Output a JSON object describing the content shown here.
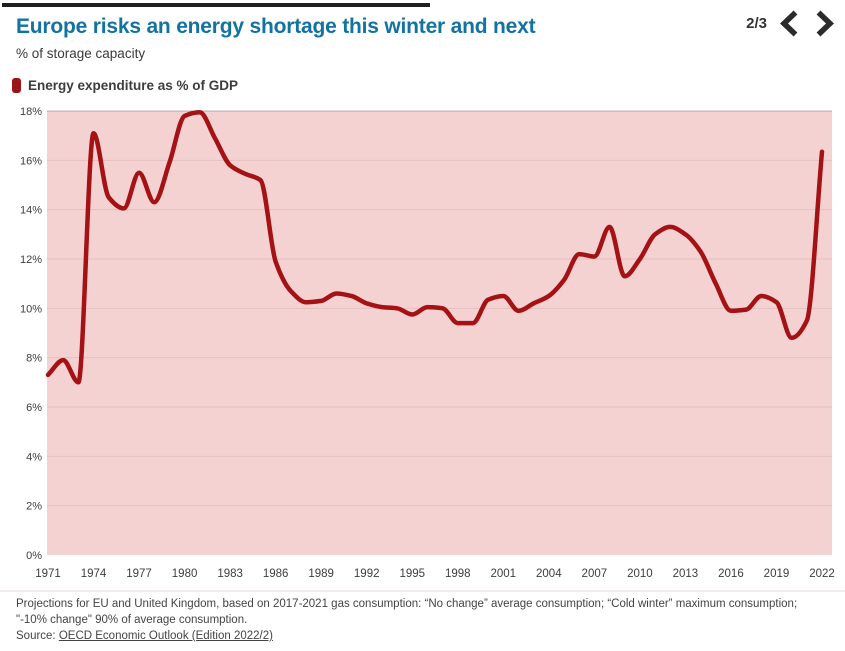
{
  "page": {
    "indicator": "2/3"
  },
  "header": {
    "title": "Europe risks an energy shortage this winter and next",
    "subtitle": "% of storage capacity"
  },
  "legend": {
    "label": "Energy expenditure as % of GDP",
    "swatch_color": "#9b1417"
  },
  "chart_data": {
    "type": "line",
    "title": "Europe risks an energy shortage this winter and next",
    "subtitle": "% of storage capacity",
    "xlabel": "",
    "ylabel": "",
    "xlim": [
      1971,
      2022
    ],
    "ylim": [
      0,
      18
    ],
    "grid": true,
    "plot_bg": "#f5d2d2",
    "grid_color": "rgba(150,80,80,0.14)",
    "top_border_color": "rgba(120,50,50,0.38)",
    "legend_position": "top-left",
    "x_ticks": [
      1971,
      1974,
      1977,
      1980,
      1983,
      1986,
      1989,
      1992,
      1995,
      1998,
      2001,
      2004,
      2007,
      2010,
      2013,
      2016,
      2019,
      2022
    ],
    "y_ticks": [
      "0%",
      "2%",
      "4%",
      "6%",
      "8%",
      "10%",
      "12%",
      "14%",
      "16%",
      "18%"
    ],
    "series": [
      {
        "name": "Energy expenditure as % of GDP",
        "color": "#a41215",
        "x": [
          1971,
          1972,
          1973,
          1974,
          1975,
          1976,
          1977,
          1978,
          1979,
          1980,
          1981,
          1982,
          1983,
          1984,
          1985,
          1986,
          1987,
          1988,
          1989,
          1990,
          1991,
          1992,
          1993,
          1994,
          1995,
          1996,
          1997,
          1998,
          1999,
          2000,
          2001,
          2002,
          2003,
          2004,
          2005,
          2006,
          2007,
          2008,
          2009,
          2010,
          2011,
          2012,
          2013,
          2014,
          2015,
          2016,
          2017,
          2018,
          2019,
          2020,
          2021,
          2022
        ],
        "values": [
          7.3,
          7.9,
          7.0,
          17.1,
          14.5,
          14.05,
          15.5,
          14.3,
          15.9,
          17.8,
          17.95,
          16.9,
          15.8,
          15.45,
          15.2,
          11.9,
          10.7,
          10.25,
          10.3,
          10.6,
          10.5,
          10.2,
          10.05,
          10.0,
          9.75,
          10.05,
          10.0,
          9.4,
          9.4,
          10.35,
          10.5,
          9.9,
          10.2,
          10.5,
          11.15,
          12.2,
          12.1,
          13.3,
          11.3,
          12.0,
          13.0,
          13.3,
          13.0,
          12.3,
          11.0,
          9.9,
          9.95,
          10.5,
          10.25,
          8.8,
          9.5,
          16.35
        ]
      }
    ]
  },
  "footer": {
    "note": "Projections for EU and United Kingdom, based on 2017-2021 gas consumption: “No change” average consumption; “Cold winter” maximum consumption; \"-10% change\" 90% of average consumption.",
    "source_prefix": "Source: ",
    "source_link": "OECD Economic Outlook (Edition 2022/2)"
  }
}
